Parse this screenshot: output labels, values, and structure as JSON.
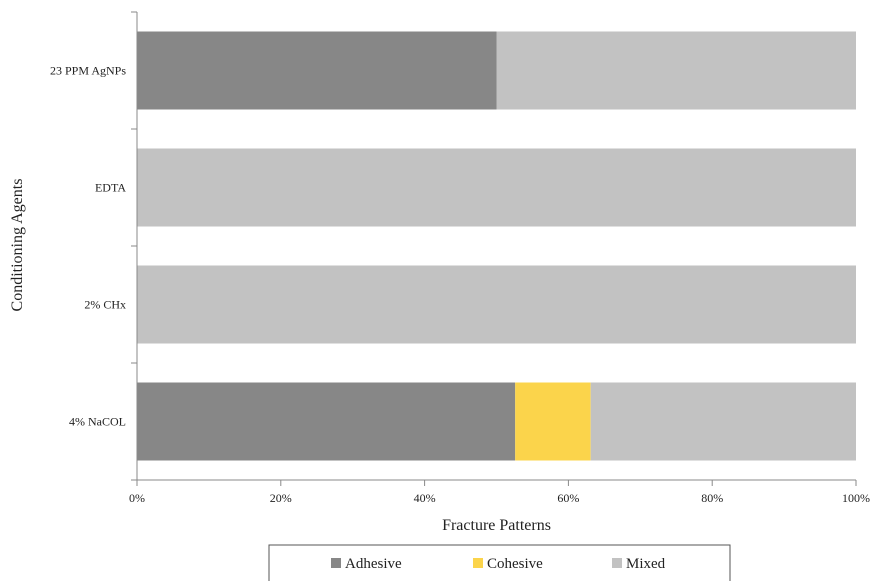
{
  "chart_data": {
    "type": "bar",
    "orientation": "horizontal",
    "stacked": "percent",
    "categories": [
      "23 PPM AgNPs",
      "EDTA",
      "2% CHx",
      "4% NaCOL"
    ],
    "series": [
      {
        "name": "Adhesive",
        "values": [
          50,
          0,
          0,
          52.6
        ],
        "color": "#878787"
      },
      {
        "name": "Cohesive",
        "values": [
          0,
          0,
          0,
          10.5
        ],
        "color": "#fbd44b"
      },
      {
        "name": "Mixed",
        "values": [
          50,
          100,
          100,
          36.9
        ],
        "color": "#c2c2c2"
      }
    ],
    "xlabel": "Fracture  Patterns",
    "ylabel": "Conditioning Agents",
    "xlim": [
      0,
      100
    ],
    "xticks": [
      "0%",
      "20%",
      "40%",
      "60%",
      "80%",
      "100%"
    ],
    "grid": false,
    "legend_position": "bottom"
  }
}
